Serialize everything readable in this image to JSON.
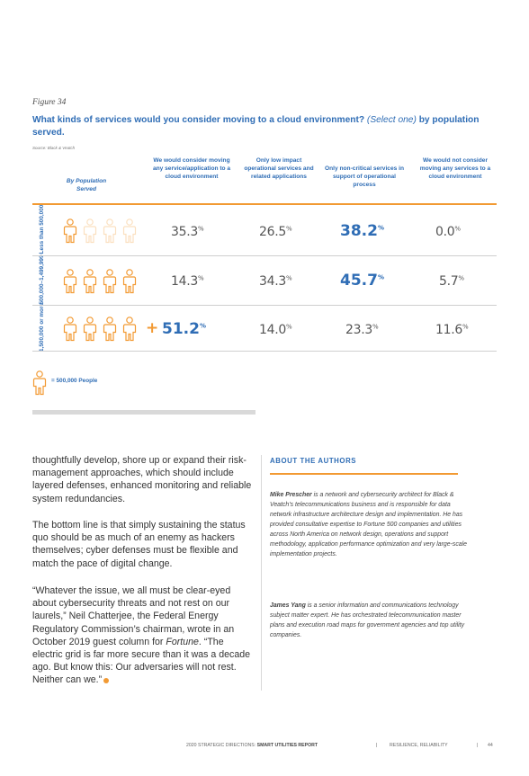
{
  "figure": {
    "label": "Figure 34",
    "title_main": "What kinds of services would you consider moving to a cloud environment?",
    "title_italic": "(Select one)",
    "title_tail": "by population served.",
    "source": "Source: Black & Veatch",
    "row_header": "By Population Served",
    "columns": [
      "We would consider moving any service/application to a cloud environment",
      "Only low impact operational services and related applications",
      "Only non-critical services in support of operational process",
      "We would not consider moving any services to a cloud environment"
    ],
    "rows": [
      {
        "label": "Less than 500,000",
        "icons": 1,
        "faded_icons": 3,
        "plus": "",
        "values": [
          "35.3",
          "26.5",
          "38.2",
          "0.0"
        ],
        "highlight": 2
      },
      {
        "label": "500,000–1,499,999",
        "icons": 4,
        "faded_icons": 0,
        "plus": "",
        "values": [
          "14.3",
          "34.3",
          "45.7",
          "5.7"
        ],
        "highlight": 2
      },
      {
        "label": "1,500,000 or more",
        "icons": 4,
        "faded_icons": 0,
        "plus": "+",
        "values": [
          "51.2",
          "14.0",
          "23.3",
          "11.6"
        ],
        "highlight": 0
      }
    ],
    "percent_sign": "%",
    "legend": "= 500,000 People"
  },
  "body": {
    "p1": "thoughtfully develop, shore up or expand their risk-management approaches, which should include layered defenses, enhanced monitoring and reliable system redundancies.",
    "p2": "The bottom line is that simply sustaining the status quo should be as much of an enemy as hackers themselves; cyber defenses must be flexible and match the pace of digital change.",
    "p3a": "“Whatever the issue, we all must be clear-eyed about cybersecurity threats and not rest on our laurels,” Neil Chatterjee, the Federal Energy Regulatory Commission’s chairman, wrote in an October 2019 guest column for",
    "p3_italic": "Fortune",
    "p3b": ". “The electric grid is far more secure than it was a decade ago. But know this: Our adversaries will not rest. Neither can we.”"
  },
  "about": {
    "title": "ABOUT THE AUTHORS",
    "bio1_name": "Mike Prescher",
    "bio1_text": " is a network and cybersecurity architect for Black & Veatch’s telecommunications business and is responsible for data network infrastructure architecture design and implementation. He has provided consultative expertise to Fortune 500 companies and utilities across North America on network design, operations and support methodology, application performance optimization and very large-scale implementation projects.",
    "bio2_name": "James Yang",
    "bio2_text": " is a senior information and communications technology subject matter expert. He has orchestrated telecommunication master plans and execution road maps for government agencies and top utility companies."
  },
  "footer": {
    "report": "2020 STRATEGIC DIRECTIONS:",
    "report_bold": "SMART UTILITIES REPORT",
    "section": "RESILIENCE, RELIABILITY",
    "page": "44",
    "sep": "|"
  },
  "colors": {
    "accent_blue": "#2f6db5",
    "accent_orange": "#f29a33"
  }
}
